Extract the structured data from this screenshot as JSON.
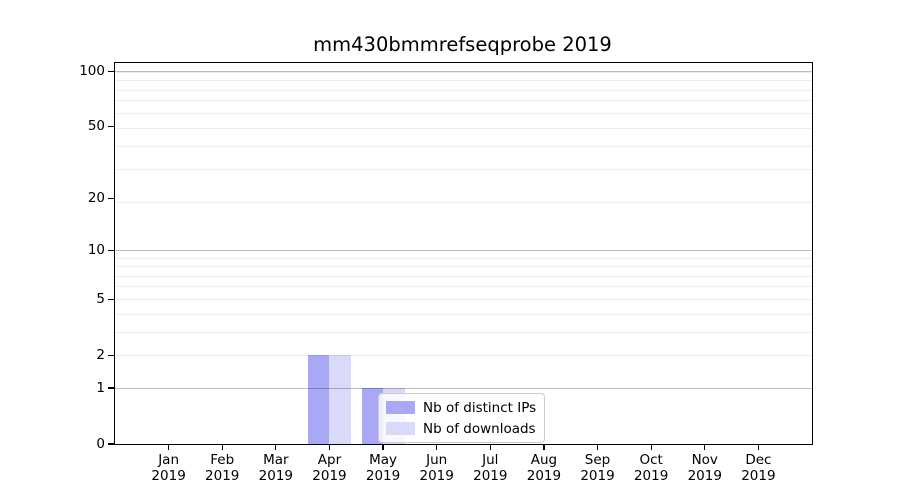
{
  "title": "mm430bmmrefseqprobe 2019",
  "chart_data": {
    "type": "bar",
    "title": "mm430bmmrefseqprobe 2019",
    "categories": [
      "Jan",
      "Feb",
      "Mar",
      "Apr",
      "May",
      "Jun",
      "Jul",
      "Aug",
      "Sep",
      "Oct",
      "Nov",
      "Dec"
    ],
    "xlabel_year": "2019",
    "series": [
      {
        "name": "Nb of distinct IPs",
        "color": "#a8a8f6",
        "values": [
          0,
          0,
          0,
          2,
          1,
          0,
          0,
          0,
          0,
          0,
          0,
          0
        ]
      },
      {
        "name": "Nb of downloads",
        "color": "#d9d9fa",
        "values": [
          0,
          0,
          0,
          2,
          1,
          0,
          0,
          0,
          0,
          0,
          0,
          0
        ]
      }
    ],
    "xlabel": "",
    "ylabel": "",
    "yscale": "log1p",
    "ylim": [
      0,
      111
    ],
    "yticks": [
      0,
      1,
      2,
      5,
      10,
      20,
      50,
      100
    ],
    "grid": {
      "major_values": [
        1,
        10,
        100
      ],
      "minor_values": [
        1,
        2,
        3,
        4,
        5,
        6,
        7,
        8,
        9,
        19,
        29,
        39,
        49,
        59,
        69,
        79,
        89,
        99
      ],
      "orientation": "horizontal"
    },
    "legend_position": "lower center-left inside plot",
    "bar_width_fraction": 0.4
  }
}
